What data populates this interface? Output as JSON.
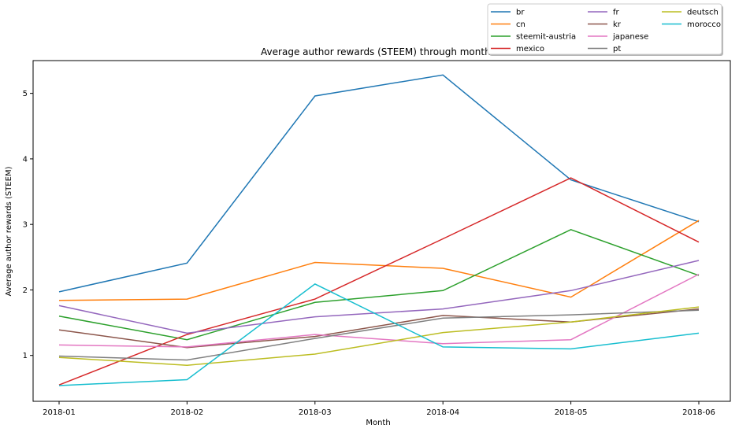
{
  "chart_data": {
    "type": "line",
    "title": "Average author rewards (STEEM) through months",
    "xlabel": "Month",
    "ylabel": "Average author rewards (STEEM)",
    "categories": [
      "2018-01",
      "2018-02",
      "2018-03",
      "2018-04",
      "2018-05",
      "2018-06"
    ],
    "ylim": [
      0.3,
      5.5
    ],
    "yticks": [
      1,
      2,
      3,
      4,
      5
    ],
    "grid": false,
    "legend_placement": "top-right",
    "legend_columns": 3,
    "series": [
      {
        "name": "br",
        "color": "#1f77b4",
        "values": [
          1.97,
          2.41,
          4.96,
          5.28,
          3.68,
          3.04
        ]
      },
      {
        "name": "cn",
        "color": "#ff7f0e",
        "values": [
          1.84,
          1.86,
          2.42,
          2.33,
          1.89,
          3.06
        ]
      },
      {
        "name": "steemit-austria",
        "color": "#2ca02c",
        "values": [
          1.6,
          1.24,
          1.81,
          1.99,
          2.92,
          2.22
        ]
      },
      {
        "name": "mexico",
        "color": "#d62728",
        "values": [
          0.55,
          1.32,
          1.86,
          2.78,
          3.71,
          2.73
        ]
      },
      {
        "name": "fr",
        "color": "#9467bd",
        "values": [
          1.76,
          1.34,
          1.59,
          1.71,
          1.99,
          2.45
        ]
      },
      {
        "name": "kr",
        "color": "#8c564b",
        "values": [
          1.39,
          1.12,
          1.29,
          1.61,
          1.51,
          1.71
        ]
      },
      {
        "name": "japanese",
        "color": "#e377c2",
        "values": [
          1.16,
          1.13,
          1.32,
          1.18,
          1.24,
          2.24
        ]
      },
      {
        "name": "pt",
        "color": "#7f7f7f",
        "values": [
          0.99,
          0.93,
          1.26,
          1.57,
          1.62,
          1.69
        ]
      },
      {
        "name": "deutsch",
        "color": "#bcbd22",
        "values": [
          0.97,
          0.85,
          1.02,
          1.35,
          1.51,
          1.74
        ]
      },
      {
        "name": "morocco",
        "color": "#17becf",
        "values": [
          0.54,
          0.63,
          2.09,
          1.13,
          1.1,
          1.34
        ]
      }
    ]
  }
}
